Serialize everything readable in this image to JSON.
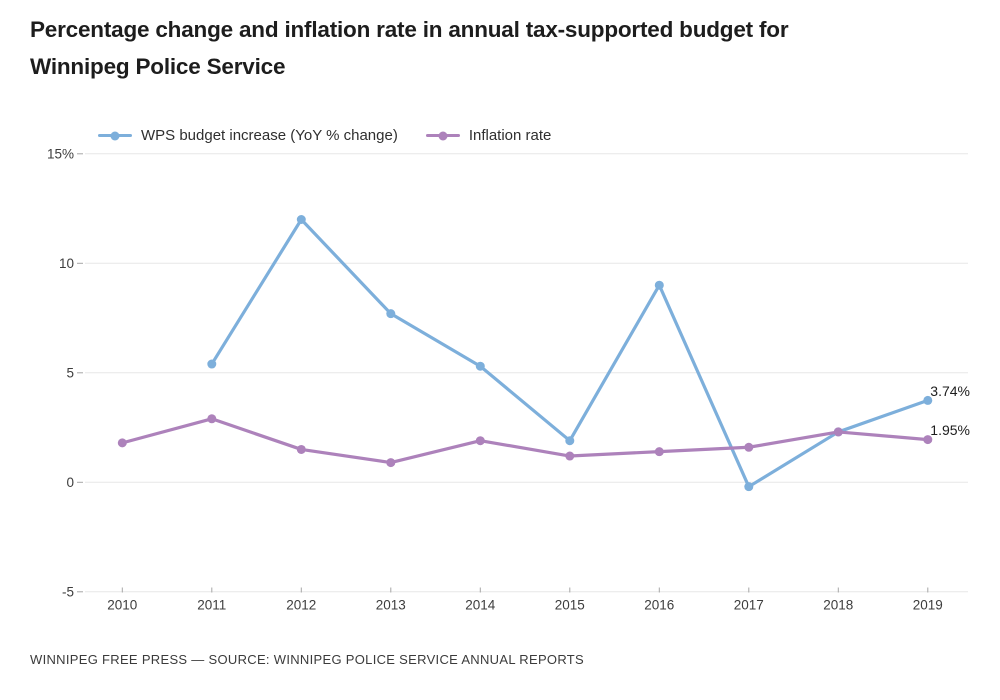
{
  "title_lines": [
    "Percentage change and inflation rate in annual tax-supported budget for",
    "Winnipeg Police Service"
  ],
  "footer": "WINNIPEG FREE PRESS — SOURCE: WINNIPEG POLICE SERVICE ANNUAL REPORTS",
  "colors": {
    "grid": "#e7e7e7",
    "tick": "#a6a6a6",
    "axis_text": "#3d3d3d",
    "annotation_text": "#1d1d1d"
  },
  "chart_data": {
    "type": "line",
    "title": "Percentage change and inflation rate in annual tax-supported budget for Winnipeg Police Service",
    "x": [
      2010,
      2011,
      2012,
      2013,
      2014,
      2015,
      2016,
      2017,
      2018,
      2019
    ],
    "series": [
      {
        "name": "WPS budget increase (YoY % change)",
        "color": "#7dafdb",
        "values": [
          null,
          5.4,
          12.0,
          7.7,
          5.3,
          1.9,
          9.0,
          -0.2,
          2.3,
          3.74
        ],
        "end_label": "3.74%"
      },
      {
        "name": "Inflation rate",
        "color": "#ad82bb",
        "values": [
          1.8,
          2.9,
          1.5,
          0.9,
          1.9,
          1.2,
          1.4,
          1.6,
          2.3,
          1.95
        ],
        "end_label": "1.95%"
      }
    ],
    "ylim": [
      -5,
      15
    ],
    "y_ticks": [
      {
        "value": 15,
        "label": "15%"
      },
      {
        "value": 10,
        "label": "10"
      },
      {
        "value": 5,
        "label": "5"
      },
      {
        "value": 0,
        "label": "0"
      },
      {
        "value": -5,
        "label": "-5"
      }
    ],
    "grid": true,
    "legend_position": "top-left"
  }
}
